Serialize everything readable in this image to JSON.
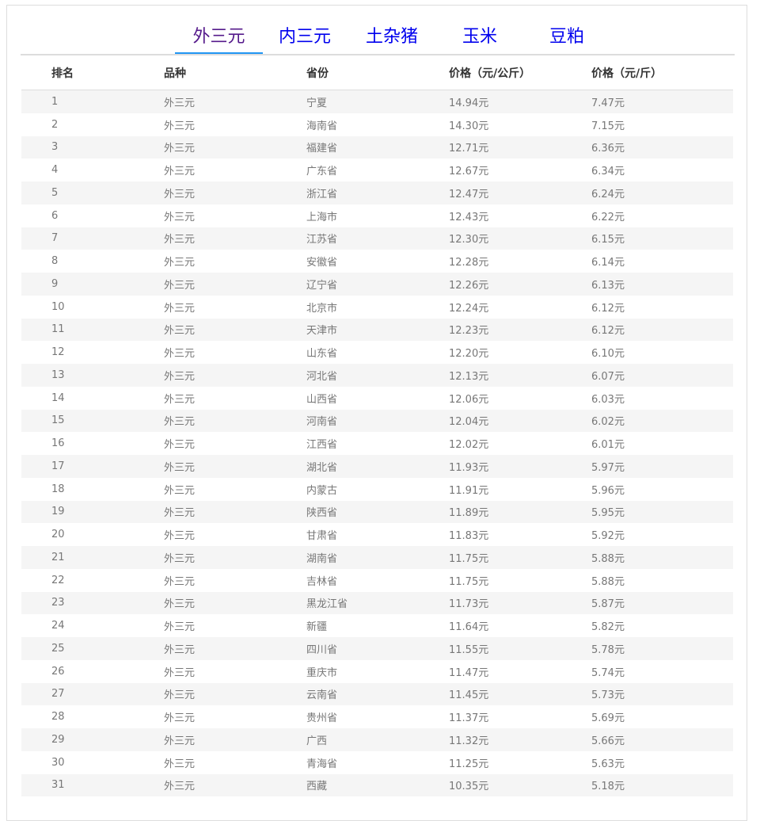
{
  "tabs": [
    {
      "label": "外三元",
      "active": true
    },
    {
      "label": "内三元",
      "active": false
    },
    {
      "label": "土杂猪",
      "active": false
    },
    {
      "label": "玉米",
      "active": false
    },
    {
      "label": "豆粕",
      "active": false
    }
  ],
  "table": {
    "headers": [
      "排名",
      "品种",
      "省份",
      "价格（元/公斤）",
      "价格（元/斤）"
    ],
    "rows": [
      [
        "1",
        "外三元",
        "宁夏",
        "14.94元",
        "7.47元"
      ],
      [
        "2",
        "外三元",
        "海南省",
        "14.30元",
        "7.15元"
      ],
      [
        "3",
        "外三元",
        "福建省",
        "12.71元",
        "6.36元"
      ],
      [
        "4",
        "外三元",
        "广东省",
        "12.67元",
        "6.34元"
      ],
      [
        "5",
        "外三元",
        "浙江省",
        "12.47元",
        "6.24元"
      ],
      [
        "6",
        "外三元",
        "上海市",
        "12.43元",
        "6.22元"
      ],
      [
        "7",
        "外三元",
        "江苏省",
        "12.30元",
        "6.15元"
      ],
      [
        "8",
        "外三元",
        "安徽省",
        "12.28元",
        "6.14元"
      ],
      [
        "9",
        "外三元",
        "辽宁省",
        "12.26元",
        "6.13元"
      ],
      [
        "10",
        "外三元",
        "北京市",
        "12.24元",
        "6.12元"
      ],
      [
        "11",
        "外三元",
        "天津市",
        "12.23元",
        "6.12元"
      ],
      [
        "12",
        "外三元",
        "山东省",
        "12.20元",
        "6.10元"
      ],
      [
        "13",
        "外三元",
        "河北省",
        "12.13元",
        "6.07元"
      ],
      [
        "14",
        "外三元",
        "山西省",
        "12.06元",
        "6.03元"
      ],
      [
        "15",
        "外三元",
        "河南省",
        "12.04元",
        "6.02元"
      ],
      [
        "16",
        "外三元",
        "江西省",
        "12.02元",
        "6.01元"
      ],
      [
        "17",
        "外三元",
        "湖北省",
        "11.93元",
        "5.97元"
      ],
      [
        "18",
        "外三元",
        "内蒙古",
        "11.91元",
        "5.96元"
      ],
      [
        "19",
        "外三元",
        "陕西省",
        "11.89元",
        "5.95元"
      ],
      [
        "20",
        "外三元",
        "甘肃省",
        "11.83元",
        "5.92元"
      ],
      [
        "21",
        "外三元",
        "湖南省",
        "11.75元",
        "5.88元"
      ],
      [
        "22",
        "外三元",
        "吉林省",
        "11.75元",
        "5.88元"
      ],
      [
        "23",
        "外三元",
        "黑龙江省",
        "11.73元",
        "5.87元"
      ],
      [
        "24",
        "外三元",
        "新疆",
        "11.64元",
        "5.82元"
      ],
      [
        "25",
        "外三元",
        "四川省",
        "11.55元",
        "5.78元"
      ],
      [
        "26",
        "外三元",
        "重庆市",
        "11.47元",
        "5.74元"
      ],
      [
        "27",
        "外三元",
        "云南省",
        "11.45元",
        "5.73元"
      ],
      [
        "28",
        "外三元",
        "贵州省",
        "11.37元",
        "5.69元"
      ],
      [
        "29",
        "外三元",
        "广西",
        "11.32元",
        "5.66元"
      ],
      [
        "30",
        "外三元",
        "青海省",
        "11.25元",
        "5.63元"
      ],
      [
        "31",
        "外三元",
        "西藏",
        "10.35元",
        "5.18元"
      ]
    ]
  }
}
